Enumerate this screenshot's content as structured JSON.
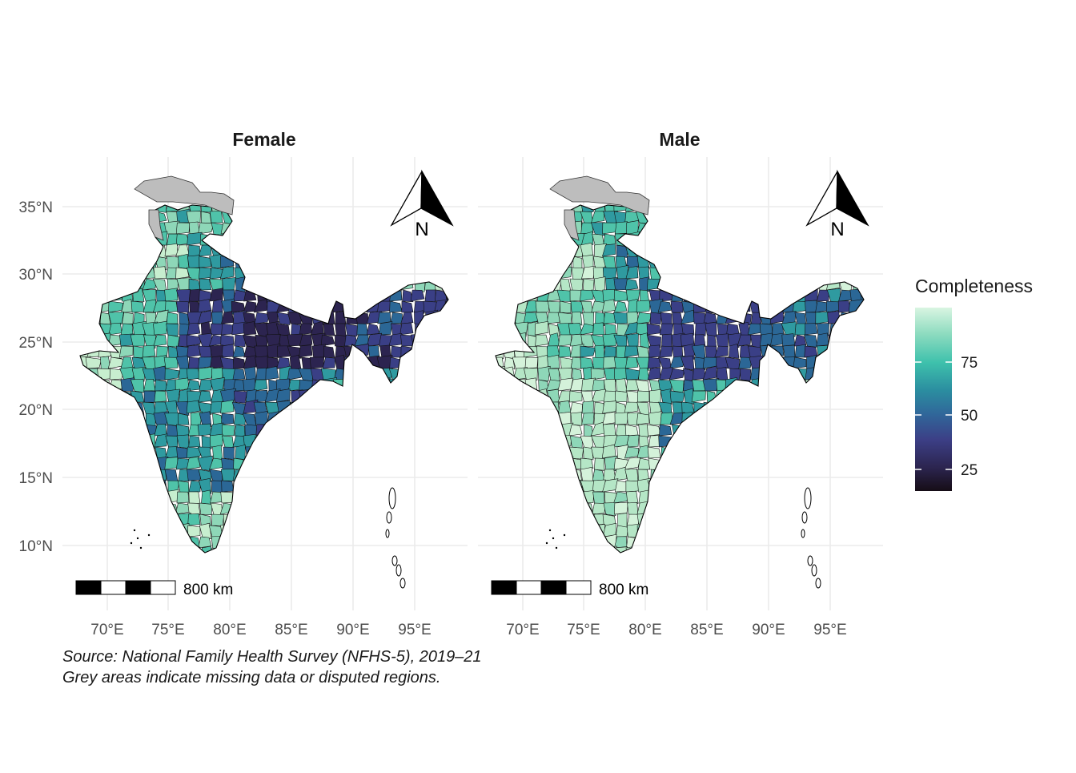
{
  "panels": [
    {
      "title": "Female",
      "north_label": "N",
      "scale_label": "800 km",
      "region_fills": [
        "#2c2450",
        "#3a3f86",
        "#2b6796",
        "#2f9aa0",
        "#4fc3a9",
        "#8ed7b8",
        "#c7eecf"
      ]
    },
    {
      "title": "Male",
      "north_label": "N",
      "scale_label": "800 km",
      "region_fills": [
        "#3a3f86",
        "#2b6796",
        "#2f9aa0",
        "#4fc3a9",
        "#8ed7b8",
        "#b5e6c6",
        "#d4f2da"
      ]
    }
  ],
  "y_ticks": [
    "35°N",
    "30°N",
    "25°N",
    "20°N",
    "15°N",
    "10°N"
  ],
  "x_ticks": [
    "70°E",
    "75°E",
    "80°E",
    "85°E",
    "90°E",
    "95°E"
  ],
  "legend": {
    "title": "Completeness",
    "ticks": [
      "75",
      "50",
      "25"
    ],
    "gradient": [
      "#d9f5e2",
      "#8fdcc0",
      "#3ec1ac",
      "#2b8ea0",
      "#30679a",
      "#3c3f86",
      "#2c2550",
      "#160d16"
    ]
  },
  "missing_color": "#bdbdbd",
  "caption": {
    "line1": "Source: National Family Health Survey (NFHS-5), 2019–21",
    "line2": "Grey areas indicate missing data or disputed regions."
  }
}
